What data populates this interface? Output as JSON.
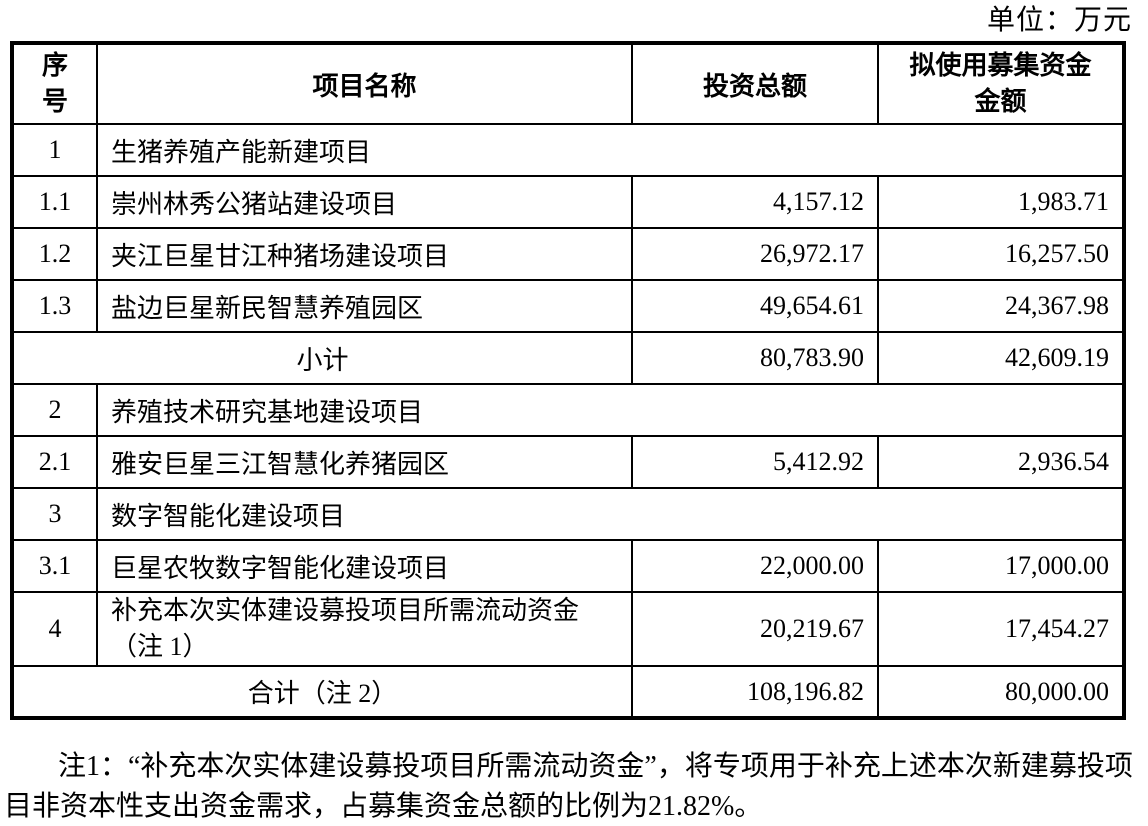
{
  "unit_label": "单位：万元",
  "table": {
    "headers": {
      "no_lines": [
        "序",
        "号"
      ],
      "name": "项目名称",
      "total": "投资总额",
      "raised_lines": [
        "拟使用募集资金",
        "金额"
      ]
    },
    "rows": [
      {
        "type": "section",
        "no": "1",
        "name": "生猪养殖产能新建项目"
      },
      {
        "type": "item",
        "no": "1.1",
        "name": "崇州林秀公猪站建设项目",
        "total": "4,157.12",
        "raised": "1,983.71"
      },
      {
        "type": "item",
        "no": "1.2",
        "name": "夹江巨星甘江种猪场建设项目",
        "total": "26,972.17",
        "raised": "16,257.50"
      },
      {
        "type": "item",
        "no": "1.3",
        "name": "盐边巨星新民智慧养殖园区",
        "total": "49,654.61",
        "raised": "24,367.98"
      },
      {
        "type": "subtotal",
        "label": "小计",
        "total": "80,783.90",
        "raised": "42,609.19"
      },
      {
        "type": "section",
        "no": "2",
        "name": "养殖技术研究基地建设项目"
      },
      {
        "type": "item",
        "no": "2.1",
        "name": "雅安巨星三江智慧化养猪园区",
        "total": "5,412.92",
        "raised": "2,936.54"
      },
      {
        "type": "section",
        "no": "3",
        "name": "数字智能化建设项目"
      },
      {
        "type": "item",
        "no": "3.1",
        "name": "巨星农牧数字智能化建设项目",
        "total": "22,000.00",
        "raised": "17,000.00"
      },
      {
        "type": "item_bold",
        "no": "4",
        "name_lines": [
          "补充本次实体建设募投项目所需流动资金",
          "（注 1）"
        ],
        "total": "20,219.67",
        "raised": "17,454.27"
      },
      {
        "type": "total",
        "label": "合计（注 2）",
        "total": "108,196.82",
        "raised": "80,000.00"
      }
    ]
  },
  "note": {
    "text": "注1：“补充本次实体建设募投项目所需流动资金”，将专项用于补充上述本次新建募投项目非资本性支出资金需求，占募集资金总额的比例为21.82%。"
  }
}
